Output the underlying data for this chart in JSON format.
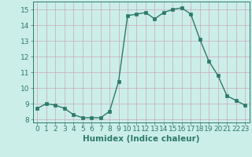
{
  "x": [
    0,
    1,
    2,
    3,
    4,
    5,
    6,
    7,
    8,
    9,
    10,
    11,
    12,
    13,
    14,
    15,
    16,
    17,
    18,
    19,
    20,
    21,
    22,
    23
  ],
  "y": [
    8.7,
    9.0,
    8.9,
    8.7,
    8.3,
    8.1,
    8.1,
    8.1,
    8.5,
    10.4,
    14.6,
    14.7,
    14.8,
    14.4,
    14.8,
    15.0,
    15.1,
    14.7,
    13.1,
    11.7,
    10.8,
    9.5,
    9.2,
    8.9
  ],
  "line_color": "#2d7a6a",
  "marker": "s",
  "markersize": 2.5,
  "linewidth": 1.0,
  "bg_color": "#cceee8",
  "grid_color": "#c8a8b8",
  "xlabel": "Humidex (Indice chaleur)",
  "xlim": [
    -0.5,
    23.5
  ],
  "ylim": [
    7.8,
    15.5
  ],
  "yticks": [
    8,
    9,
    10,
    11,
    12,
    13,
    14,
    15
  ],
  "xticks": [
    0,
    1,
    2,
    3,
    4,
    5,
    6,
    7,
    8,
    9,
    10,
    11,
    12,
    13,
    14,
    15,
    16,
    17,
    18,
    19,
    20,
    21,
    22,
    23
  ],
  "tick_color": "#2d7a6a",
  "label_color": "#2d7a6a",
  "xlabel_fontsize": 7.5,
  "tick_fontsize": 6.5
}
